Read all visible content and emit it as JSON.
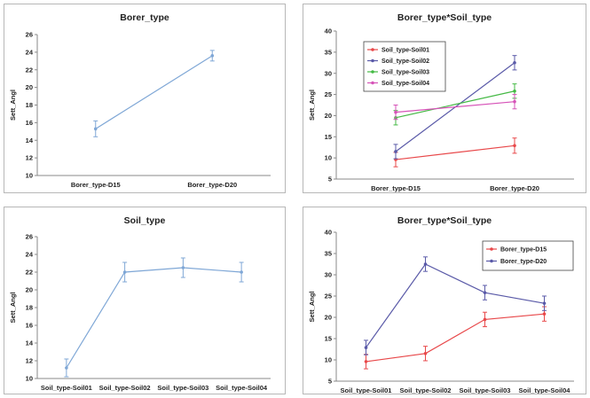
{
  "chart_data": [
    {
      "type": "line",
      "title": "Borer_type",
      "ylabel": "Sett_Angl",
      "xlabel": "",
      "categories": [
        "Borer_type-D15",
        "Borer_type-D20"
      ],
      "ylim": [
        10,
        26
      ],
      "yticks": [
        10,
        12,
        14,
        16,
        18,
        20,
        22,
        24,
        26
      ],
      "grid": false,
      "series": [
        {
          "color": "#7fa7d6",
          "values": [
            15.3,
            23.6
          ],
          "err": [
            0.9,
            0.6
          ]
        }
      ]
    },
    {
      "type": "line",
      "title": "Borer_type*Soil_type",
      "ylabel": "Sett_Angl",
      "xlabel": "",
      "categories": [
        "Borer_type-D15",
        "Borer_type-D20"
      ],
      "ylim": [
        5,
        40
      ],
      "yticks": [
        5,
        10,
        15,
        20,
        25,
        30,
        35,
        40
      ],
      "grid": false,
      "legend": "top-left",
      "series": [
        {
          "name": "Soil_type-Soil01",
          "color": "#e8484a",
          "values": [
            9.6,
            12.9
          ],
          "err": [
            1.7,
            1.8
          ]
        },
        {
          "name": "Soil_type-Soil02",
          "color": "#5a5aa8",
          "values": [
            11.5,
            32.5
          ],
          "err": [
            1.7,
            1.7
          ]
        },
        {
          "name": "Soil_type-Soil03",
          "color": "#44b944",
          "values": [
            19.5,
            25.8
          ],
          "err": [
            1.7,
            1.7
          ]
        },
        {
          "name": "Soil_type-Soil04",
          "color": "#d653b8",
          "values": [
            20.8,
            23.3
          ],
          "err": [
            1.7,
            1.7
          ]
        }
      ]
    },
    {
      "type": "line",
      "title": "Soil_type",
      "ylabel": "Sett_Angl",
      "xlabel": "",
      "categories": [
        "Soil_type-Soil01",
        "Soil_type-Soil02",
        "Soil_type-Soil03",
        "Soil_type-Soil04"
      ],
      "ylim": [
        10,
        26
      ],
      "yticks": [
        10,
        12,
        14,
        16,
        18,
        20,
        22,
        24,
        26
      ],
      "grid": false,
      "series": [
        {
          "color": "#7fa7d6",
          "values": [
            11.2,
            22.0,
            22.5,
            22.0
          ],
          "err": [
            1.0,
            1.1,
            1.1,
            1.1
          ]
        }
      ]
    },
    {
      "type": "line",
      "title": "Borer_type*Soil_type",
      "ylabel": "Sett_Angl",
      "xlabel": "",
      "categories": [
        "Soil_type-Soil01",
        "Soil_type-Soil02",
        "Soil_type-Soil03",
        "Soil_type-Soil04"
      ],
      "ylim": [
        5,
        40
      ],
      "yticks": [
        5,
        10,
        15,
        20,
        25,
        30,
        35,
        40
      ],
      "grid": false,
      "legend": "top-right",
      "series": [
        {
          "name": "Borer_type-D15",
          "color": "#e8484a",
          "values": [
            9.6,
            11.5,
            19.5,
            20.8
          ],
          "err": [
            1.7,
            1.7,
            1.7,
            1.7
          ]
        },
        {
          "name": "Borer_type-D20",
          "color": "#5a5aa8",
          "values": [
            12.9,
            32.5,
            25.8,
            23.3
          ],
          "err": [
            1.7,
            1.7,
            1.7,
            1.7
          ]
        }
      ]
    }
  ]
}
